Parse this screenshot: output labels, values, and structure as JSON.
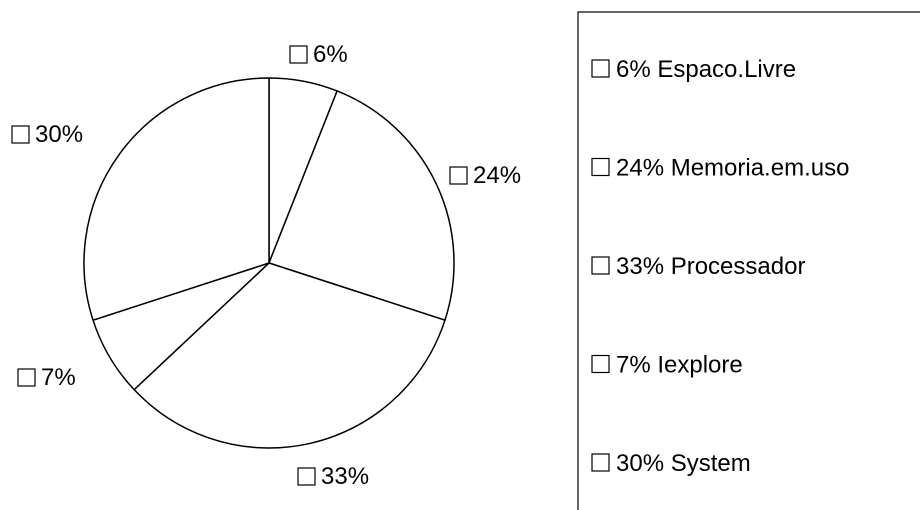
{
  "chart_data": {
    "type": "pie",
    "title": "",
    "slices": [
      {
        "label": "Espaco.Livre",
        "value": 6,
        "pct_label": "6%",
        "legend_label": "6% Espaco.Livre"
      },
      {
        "label": "Memoria.em.uso",
        "value": 24,
        "pct_label": "24%",
        "legend_label": "24% Memoria.em.uso"
      },
      {
        "label": "Processador",
        "value": 33,
        "pct_label": "33%",
        "legend_label": "33% Processador"
      },
      {
        "label": "Iexplore",
        "value": 7,
        "pct_label": "7%",
        "legend_label": "7% Iexplore"
      },
      {
        "label": "System",
        "value": 30,
        "pct_label": "30%",
        "legend_label": "30% System"
      }
    ],
    "legend_position": "right",
    "fill_color": "#ffffff",
    "stroke_color": "#000000",
    "marker_glyph": "□"
  }
}
